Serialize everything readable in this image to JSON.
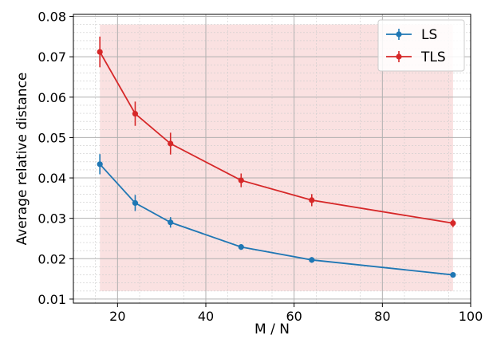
{
  "chart_data": {
    "type": "line",
    "xlabel": "M / N",
    "ylabel": "Average relative distance",
    "xlim": [
      10,
      100
    ],
    "ylim": [
      0.009,
      0.0805
    ],
    "xticks": [
      20,
      40,
      60,
      80,
      100
    ],
    "xtick_labels": [
      "20",
      "40",
      "60",
      "80",
      "100"
    ],
    "yticks": [
      0.01,
      0.02,
      0.03,
      0.04,
      0.05,
      0.06,
      0.07,
      0.08
    ],
    "ytick_labels": [
      "0.01",
      "0.02",
      "0.03",
      "0.04",
      "0.05",
      "0.06",
      "0.07",
      "0.08"
    ],
    "grid": "major and minor",
    "legend_position": "top-right",
    "shaded_region": {
      "x": [
        16,
        96
      ],
      "y": [
        0.012,
        0.078
      ],
      "color": "#f8d7d7"
    },
    "x": [
      16,
      24,
      32,
      48,
      64,
      96
    ],
    "series": [
      {
        "name": "LS",
        "color": "#1f77b4",
        "values": [
          0.0434,
          0.0338,
          0.029,
          0.0229,
          0.0197,
          0.016
        ],
        "errors": [
          0.0025,
          0.002,
          0.0013,
          0.0007,
          0.0007,
          0.0004
        ]
      },
      {
        "name": "TLS",
        "color": "#d62728",
        "values": [
          0.0712,
          0.0559,
          0.0485,
          0.0394,
          0.0345,
          0.0288
        ],
        "errors": [
          0.0038,
          0.003,
          0.0027,
          0.0017,
          0.0015,
          0.001
        ]
      }
    ]
  }
}
